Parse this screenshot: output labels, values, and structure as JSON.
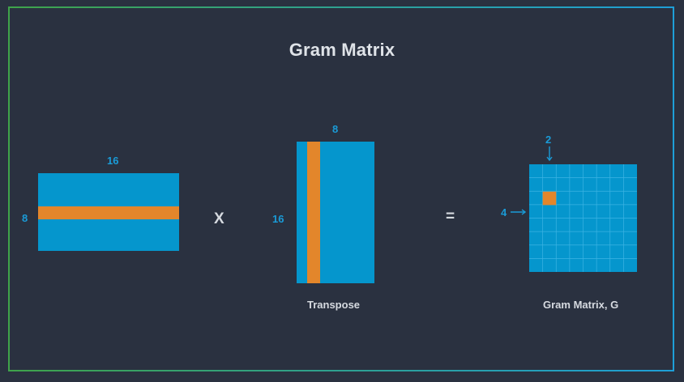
{
  "title": "Gram Matrix",
  "colors": {
    "background": "#2a3140",
    "matrix_blue": "#0596cd",
    "highlight_orange": "#e3862b",
    "label_blue": "#1a9bd7",
    "frame_gradient_start": "#3fa34a",
    "frame_gradient_end": "#1e9fd8"
  },
  "left_matrix": {
    "width_label": "16",
    "height_label": "8"
  },
  "operator_multiply": "X",
  "transpose_matrix": {
    "width_label": "8",
    "height_label": "16",
    "caption": "Transpose"
  },
  "operator_equals": "=",
  "gram_matrix": {
    "column_label": "2",
    "row_label": "4",
    "caption": "Gram Matrix, G",
    "grid_cells": 8,
    "highlight_row": 4,
    "highlight_col": 2
  },
  "icons": {
    "down_arrow": "arrow-down-icon",
    "right_arrow": "arrow-right-icon"
  }
}
